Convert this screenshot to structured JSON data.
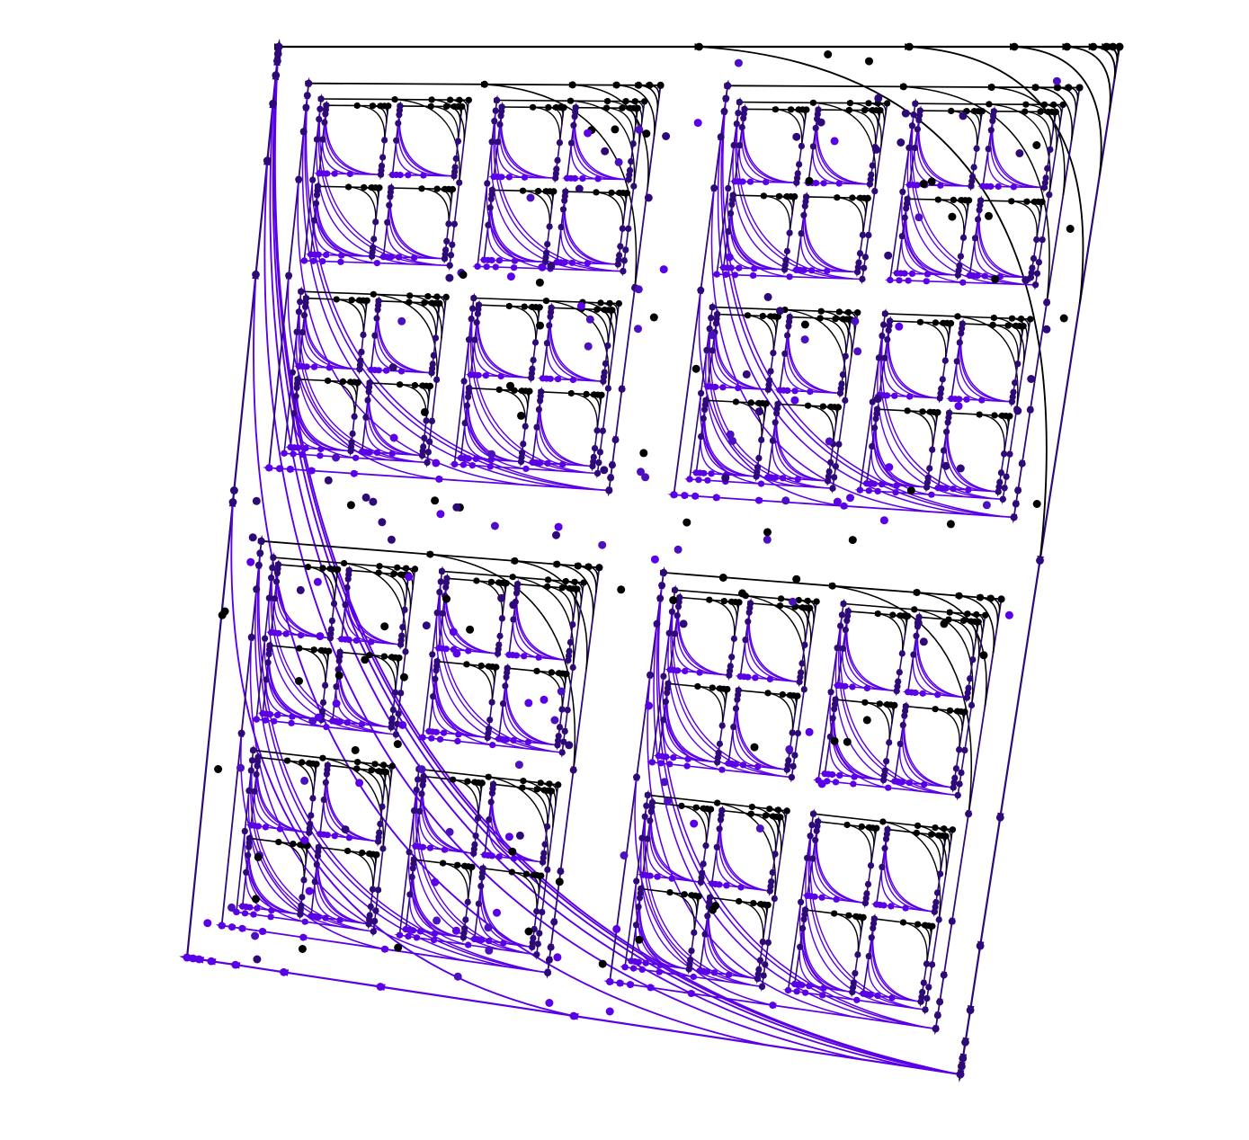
{
  "diagram": {
    "type": "recursive-directed-graph",
    "colors": {
      "background": "#ffffff",
      "top_edges": "#000000",
      "right_edges": "#2e0a78",
      "bottom_edges": "#5a00e6",
      "left_edges": "#2e0a78",
      "inner_nodes": [
        "#000000",
        "#2e0a78",
        "#5a00e6",
        "#4b10c0"
      ]
    },
    "edge_directions": {
      "top": "left-to-right",
      "right": "top-to-bottom",
      "bottom": "right-to-left",
      "left": "bottom-to-top"
    },
    "recursion_depth": 3,
    "arrowheads": "triangle",
    "node_marker": "filled-circle"
  }
}
